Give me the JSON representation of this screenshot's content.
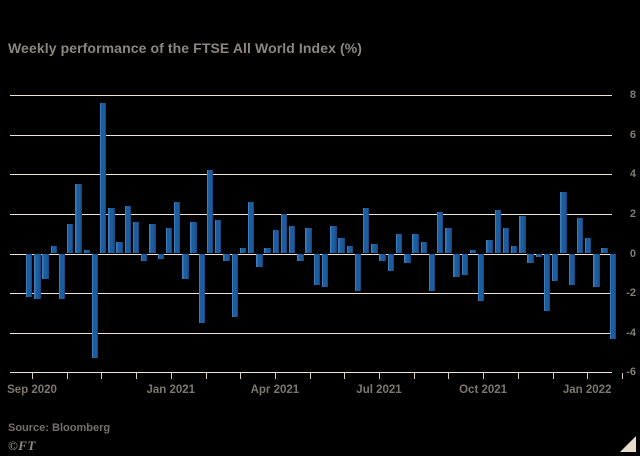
{
  "chart_data": {
    "type": "bar",
    "title": "Weekly performance of the FTSE All World Index (%)",
    "source": "Source: Bloomberg",
    "credit": "©FT",
    "ylabel": "",
    "xlabel": "",
    "ylim": [
      -6,
      8
    ],
    "grid": true,
    "y_ticks": [
      "8",
      "6",
      "4",
      "2",
      "0",
      "-2",
      "-4",
      "-6"
    ],
    "y_tick_values": [
      8,
      6,
      4,
      2,
      0,
      -2,
      -4,
      -6
    ],
    "x_tick_labels": [
      "Sep 2020",
      "Jan 2021",
      "Apr 2021",
      "Jul 2021",
      "Oct 2021",
      "Jan 2022"
    ],
    "x_tick_label_month_index": [
      0,
      4,
      7,
      10,
      13,
      16
    ],
    "x_minor_tick_count": 18,
    "categories_note": "weekly bars, Sep 2020 through Jan 2022",
    "values": [
      -2.2,
      -2.3,
      -1.3,
      0.4,
      -2.3,
      1.5,
      3.5,
      0.2,
      -5.3,
      7.6,
      2.3,
      0.6,
      2.4,
      1.6,
      -0.4,
      1.5,
      -0.3,
      1.3,
      2.6,
      -1.3,
      1.6,
      -3.5,
      4.2,
      1.7,
      -0.4,
      -3.2,
      0.3,
      2.6,
      -0.7,
      0.3,
      1.2,
      2.0,
      1.4,
      -0.4,
      1.3,
      -1.6,
      -1.7,
      1.4,
      0.8,
      0.4,
      -1.9,
      2.3,
      0.5,
      -0.4,
      -0.9,
      1.0,
      -0.5,
      1.0,
      0.6,
      -1.9,
      2.1,
      1.3,
      -1.2,
      -1.1,
      0.2,
      -2.4,
      0.7,
      2.2,
      1.3,
      0.4,
      1.9,
      -0.5,
      -0.2,
      -2.9,
      -1.4,
      3.1,
      -1.6,
      1.8,
      0.8,
      -1.7,
      0.3,
      -4.3
    ],
    "colors": {
      "background": "#000000",
      "bar": "#1d5c9f",
      "bar_highlight": "#3f7db8",
      "gridline": "#efe2d2",
      "axis_text": "#7d7770",
      "title_text": "#8c8680"
    },
    "legend": null
  }
}
